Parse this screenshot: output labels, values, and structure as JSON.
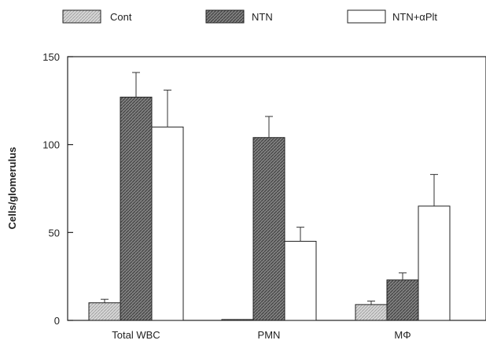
{
  "chart_data": {
    "type": "bar",
    "title": "",
    "xlabel": "",
    "ylabel": "Cells/glomerulus",
    "ylim": [
      0,
      150
    ],
    "yticks": [
      0,
      50,
      100,
      150
    ],
    "categories": [
      "Total WBC",
      "PMN",
      "MΦ"
    ],
    "legend_position": "top",
    "grid": false,
    "series": [
      {
        "name": "Cont",
        "values": [
          10,
          0.5,
          9
        ],
        "errors": [
          2,
          0,
          2
        ],
        "fill": "#cfcfcf",
        "pattern": "light-hatch"
      },
      {
        "name": "NTN",
        "values": [
          127,
          104,
          23
        ],
        "errors": [
          14,
          12,
          4
        ],
        "fill": "#7a7a7a",
        "pattern": "dark-hatch"
      },
      {
        "name": "NTN+αPlt",
        "values": [
          110,
          45,
          65
        ],
        "errors": [
          21,
          8,
          18
        ],
        "fill": "#ffffff",
        "pattern": "none"
      }
    ]
  }
}
